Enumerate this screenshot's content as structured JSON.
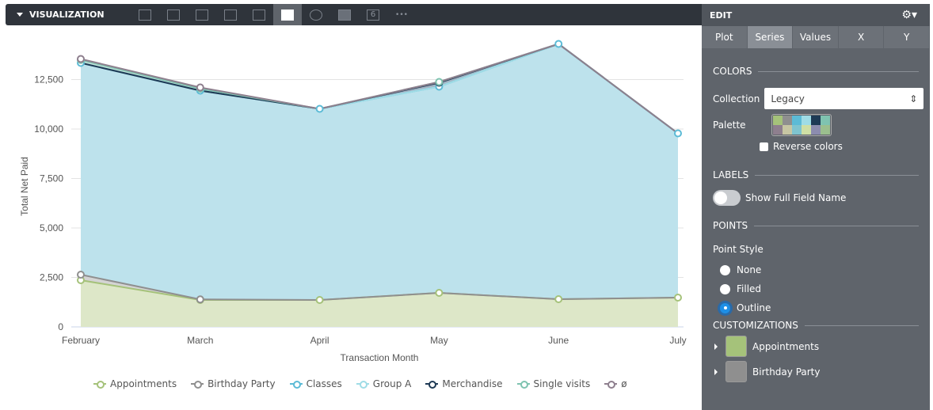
{
  "toolbar": {
    "title": "VISUALIZATION",
    "types": [
      "table",
      "column",
      "bar",
      "scatter",
      "line",
      "area",
      "pie",
      "map",
      "single-value"
    ],
    "active": "area",
    "single_value_glyph": "6",
    "more": "•••"
  },
  "panel": {
    "title": "EDIT",
    "tabs": [
      "Plot",
      "Series",
      "Values",
      "X",
      "Y"
    ],
    "active_tab": "Series",
    "colors": {
      "heading": "COLORS",
      "collection_label": "Collection",
      "collection_value": "Legacy",
      "palette_label": "Palette",
      "palette": [
        "#a5c27a",
        "#8f8f8f",
        "#5cbbd6",
        "#9fdce6",
        "#1e3a55",
        "#7fc3b0",
        "#8e7f8e",
        "#c7c6a3",
        "#7fc4cf",
        "#cfdfa5",
        "#8c8cae",
        "#9bbf8e"
      ],
      "reverse_label": "Reverse colors"
    },
    "labels": {
      "heading": "LABELS",
      "show_full_label": "Show Full Field Name"
    },
    "points": {
      "heading": "POINTS",
      "style_label": "Point Style",
      "options": [
        "None",
        "Filled",
        "Outline"
      ],
      "selected": "Outline"
    },
    "customizations": {
      "heading": "CUSTOMIZATIONS",
      "items": [
        {
          "label": "Appointments",
          "color": "#a5c27a"
        },
        {
          "label": "Birthday Party",
          "color": "#8f8f8f"
        }
      ]
    }
  },
  "chart_data": {
    "type": "area",
    "stacked": true,
    "xlabel": "Transaction Month",
    "ylabel": "Total Net Paid",
    "categories": [
      "February",
      "March",
      "April",
      "May",
      "June",
      "July"
    ],
    "ylim": [
      0,
      15000
    ],
    "yticks": [
      0,
      2500,
      5000,
      7500,
      10000,
      12500
    ],
    "ytick_labels": [
      "0",
      "2,500",
      "5,000",
      "7,500",
      "10,000",
      "12,500"
    ],
    "series": [
      {
        "name": "Appointments",
        "color": "#a5c27a",
        "fill": "#dde7c8",
        "values": [
          2360,
          1360,
          1360,
          1720,
          1400,
          1480
        ]
      },
      {
        "name": "Birthday Party",
        "color": "#8f8f8f",
        "fill": "#d4d4d4",
        "values": [
          280,
          30,
          0,
          0,
          0,
          0
        ]
      },
      {
        "name": "Classes",
        "color": "#5cbbd6",
        "fill": "#bde2ec",
        "values": [
          10700,
          10550,
          9660,
          10420,
          12900,
          8300
        ]
      },
      {
        "name": "Group A",
        "color": "#9fdce6",
        "fill": "#c9ebf0",
        "values": [
          0,
          0,
          0,
          0,
          0,
          0
        ]
      },
      {
        "name": "Merchandise",
        "color": "#1e3a55",
        "fill": "#a5b5c5",
        "values": [
          0,
          0,
          0,
          200,
          0,
          0
        ]
      },
      {
        "name": "Single visits",
        "color": "#7fc3b0",
        "fill": "#c4e3da",
        "values": [
          150,
          100,
          0,
          40,
          0,
          0
        ]
      },
      {
        "name": "ø",
        "color": "#8e7f8e",
        "fill": "#cfc7cf",
        "values": [
          50,
          60,
          0,
          0,
          0,
          0
        ]
      }
    ]
  }
}
